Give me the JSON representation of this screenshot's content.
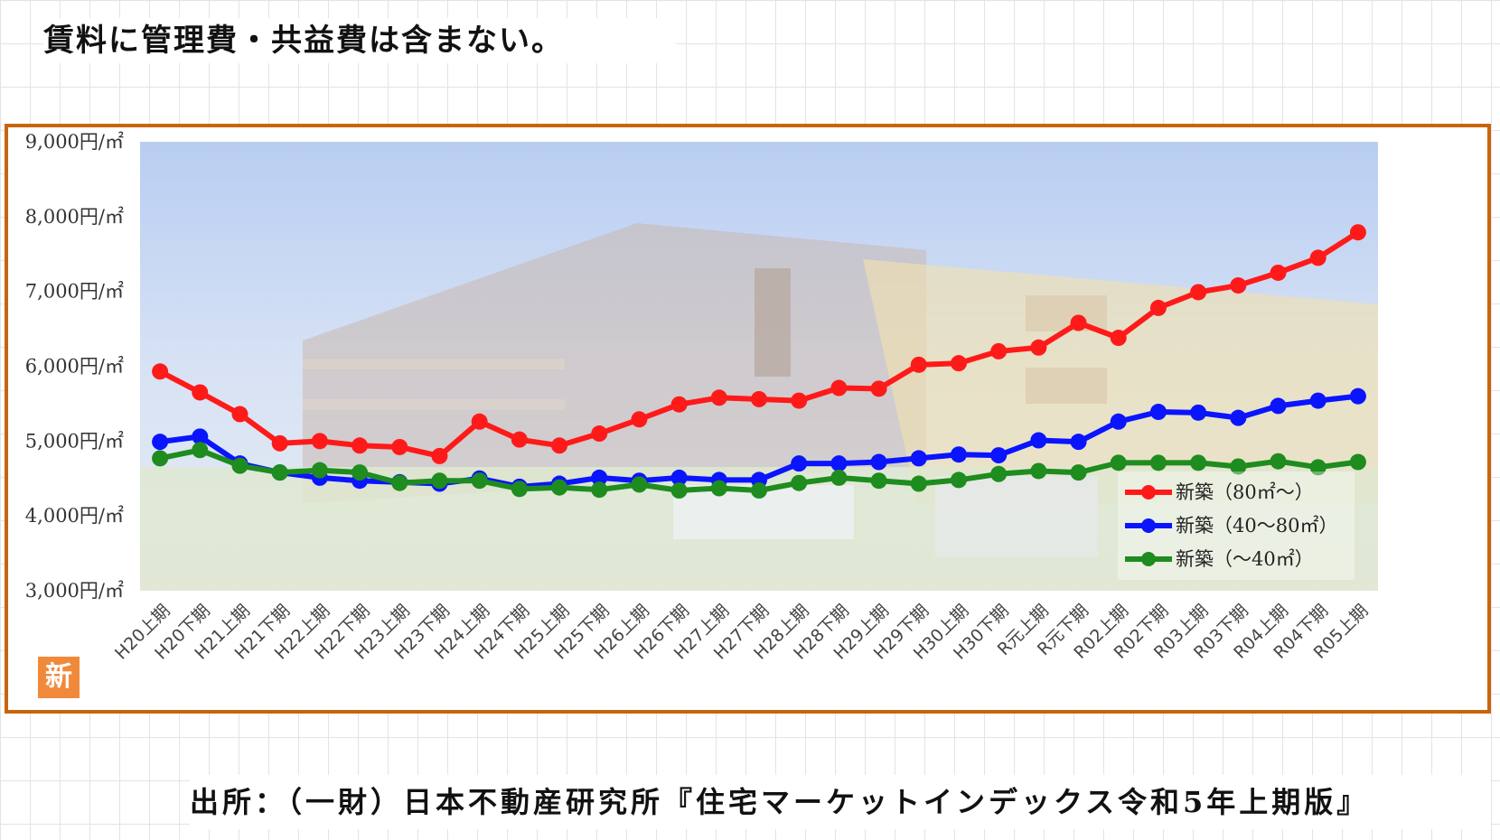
{
  "note": "賃料に管理費・共益費は含まない。",
  "source": "出所：（一財）日本不動産研究所『住宅マーケットインデックス令和5年上期版』",
  "badge_text": "新",
  "chart_data": {
    "type": "line",
    "title": "",
    "xlabel": "",
    "ylabel": "",
    "ylim": [
      3000,
      9000
    ],
    "y_ticks": [
      3000,
      4000,
      5000,
      6000,
      7000,
      8000,
      9000
    ],
    "y_tick_suffix": "円/㎡",
    "grid": false,
    "legend_position": "bottom-right",
    "categories": [
      "H20上期",
      "H20下期",
      "H21上期",
      "H21下期",
      "H22上期",
      "H22下期",
      "H23上期",
      "H23下期",
      "H24上期",
      "H24下期",
      "H25上期",
      "H25下期",
      "H26上期",
      "H26下期",
      "H27上期",
      "H27下期",
      "H28上期",
      "H28下期",
      "H29上期",
      "H29下期",
      "H30上期",
      "H30下期",
      "R元上期",
      "R元下期",
      "R02上期",
      "R02下期",
      "R03上期",
      "R03下期",
      "R04上期",
      "R04下期",
      "R05上期"
    ],
    "series": [
      {
        "name": "新築（80㎡～）",
        "color": "#ff1a1a",
        "values": [
          5930,
          5650,
          5360,
          4970,
          5000,
          4940,
          4920,
          4800,
          5260,
          5020,
          4940,
          5100,
          5290,
          5490,
          5580,
          5560,
          5540,
          5710,
          5700,
          6020,
          6040,
          6200,
          6250,
          6580,
          6380,
          6780,
          6990,
          7080,
          7250,
          7450,
          7790
        ]
      },
      {
        "name": "新築（40～80㎡）",
        "color": "#0a14ff",
        "values": [
          4990,
          5060,
          4700,
          4580,
          4510,
          4470,
          4450,
          4430,
          4500,
          4390,
          4430,
          4510,
          4470,
          4510,
          4480,
          4480,
          4700,
          4700,
          4720,
          4770,
          4820,
          4810,
          5010,
          4990,
          5260,
          5390,
          5380,
          5310,
          5470,
          5540,
          5600
        ]
      },
      {
        "name": "新築（～40㎡）",
        "color": "#1e8c1e",
        "values": [
          4770,
          4880,
          4670,
          4580,
          4610,
          4580,
          4440,
          4470,
          4470,
          4360,
          4380,
          4350,
          4420,
          4340,
          4370,
          4340,
          4440,
          4510,
          4470,
          4430,
          4480,
          4560,
          4600,
          4580,
          4710,
          4710,
          4710,
          4660,
          4730,
          4650,
          4720
        ]
      }
    ]
  }
}
